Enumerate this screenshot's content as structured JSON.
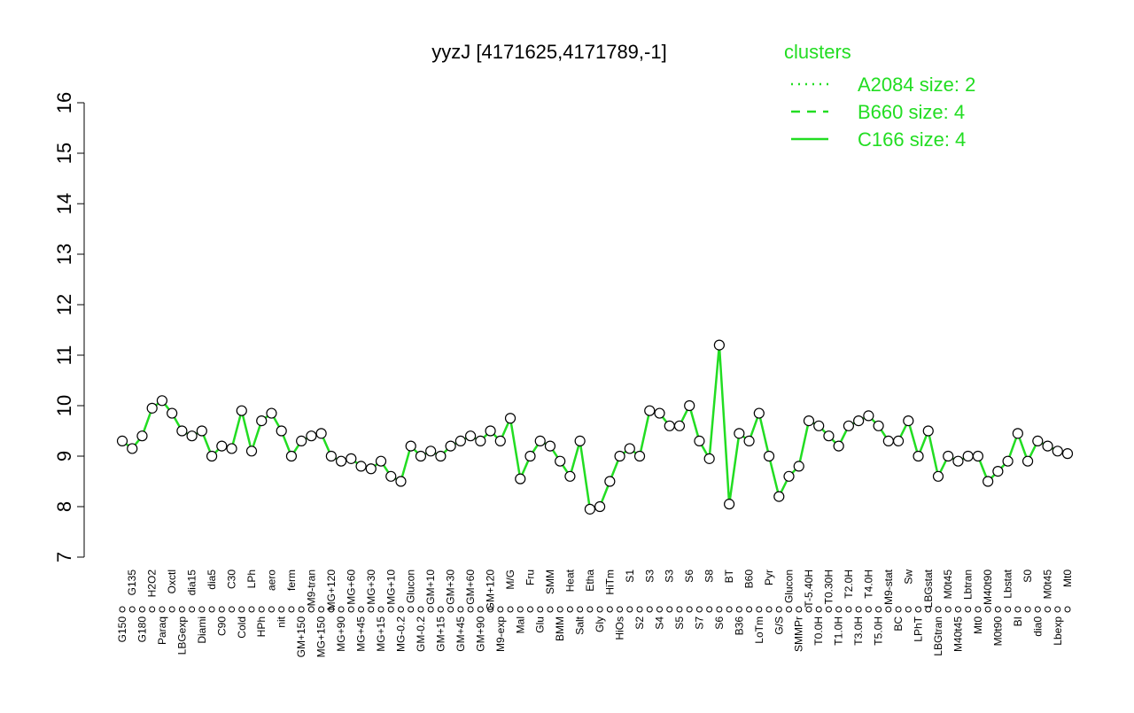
{
  "chart_data": {
    "type": "line",
    "title": "yyzJ [4171625,4171789,-1]",
    "legend_title": "clusters",
    "legend": [
      {
        "name": "A2084 size: 2",
        "dash": "dotted"
      },
      {
        "name": "B660 size: 4",
        "dash": "dashed"
      },
      {
        "name": "C166 size: 4",
        "dash": "solid"
      }
    ],
    "color": "#22dd22",
    "ylim": [
      7,
      16
    ],
    "yticks": [
      7,
      8,
      9,
      10,
      11,
      12,
      13,
      14,
      15,
      16
    ],
    "categories": [
      "G150",
      "G135",
      "G180",
      "H2O2",
      "Paraq",
      "Oxctl",
      "LBGexp",
      "dia15",
      "Diami",
      "dia5",
      "C90",
      "C30",
      "Cold",
      "LPh",
      "HPh",
      "aero",
      "nit",
      "ferm",
      "GM+150",
      "M9-tran",
      "MG+150",
      "MG+120",
      "MG+90",
      "MG+60",
      "MG+45",
      "MG+30",
      "MG+15",
      "MG+10",
      "MG-0.2",
      "Glucon",
      "GM-0.2",
      "GM+10",
      "GM+15",
      "GM+30",
      "GM+45",
      "GM+60",
      "GM+90",
      "GM+120",
      "M9-exp",
      "M/G",
      "Mal",
      "Fru",
      "Glu",
      "SMM",
      "BMM",
      "Heat",
      "Salt",
      "Etha",
      "Gly",
      "HiTm",
      "HiOs",
      "S1",
      "S2",
      "S3",
      "S4",
      "S3",
      "S5",
      "S6",
      "S7",
      "S8",
      "S6",
      "BT",
      "B36",
      "B60",
      "LoTm",
      "Pyr",
      "G/S",
      "Glucon",
      "SMMPr",
      "T-5.40H",
      "T0.0H",
      "T0.30H",
      "T1.0H",
      "T2.0H",
      "T3.0H",
      "T4.0H",
      "T5.0H",
      "M9-stat",
      "BC",
      "Sw",
      "LPhT",
      "LBGstat",
      "LBGtran",
      "M0t45",
      "M40t45",
      "Lbtran",
      "Mt0",
      "M40t90",
      "M0t90",
      "Lbstat",
      "BI",
      "S0",
      "dia0",
      "M0t45",
      "Lbexp",
      "Mt0"
    ],
    "values": [
      9.3,
      9.15,
      9.4,
      9.95,
      10.1,
      9.85,
      9.5,
      9.4,
      9.5,
      9.0,
      9.2,
      9.15,
      9.9,
      9.1,
      9.7,
      9.85,
      9.5,
      9.0,
      9.3,
      9.4,
      9.45,
      9.0,
      8.9,
      8.95,
      8.8,
      8.75,
      8.9,
      8.6,
      8.5,
      9.2,
      9.0,
      9.1,
      9.0,
      9.2,
      9.3,
      9.4,
      9.3,
      9.5,
      9.3,
      9.75,
      8.55,
      9.0,
      9.3,
      9.2,
      8.9,
      8.6,
      9.3,
      7.95,
      8.0,
      8.5,
      9.0,
      9.15,
      9.0,
      9.9,
      9.85,
      9.6,
      9.6,
      10.0,
      9.3,
      8.95,
      11.2,
      8.05,
      9.45,
      9.3,
      9.85,
      9.0,
      8.2,
      8.6,
      8.8,
      9.7,
      9.6,
      9.4,
      9.2,
      9.6,
      9.7,
      9.8,
      9.6,
      9.3,
      9.3,
      9.7,
      9.0,
      9.5,
      8.6,
      9.0,
      8.9,
      9.0,
      9.0,
      8.5,
      8.7,
      8.9,
      9.45,
      8.9,
      9.3,
      9.2,
      9.1,
      9.05
    ]
  }
}
